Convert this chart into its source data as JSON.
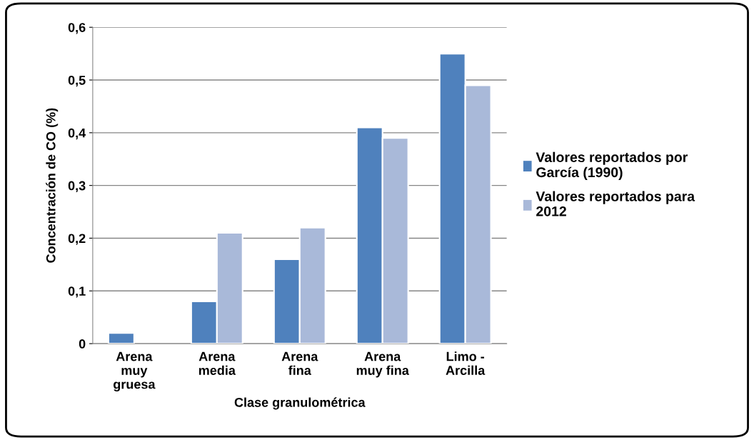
{
  "chart_data": {
    "type": "bar",
    "xlabel": "Clase granulométrica",
    "ylabel": "Concentración de CO (%)",
    "categories": [
      "Arena\nmuy\ngruesa",
      "Arena\nmedia",
      "Arena\nfina",
      "Arena\nmuy fina",
      "Limo -\nArcilla"
    ],
    "series": [
      {
        "name": "Valores reportados por\nGarcía (1990)",
        "color": "#4f81bd",
        "values": [
          0.02,
          0.08,
          0.16,
          0.41,
          0.55
        ]
      },
      {
        "name": "Valores reportados para\n2012",
        "color": "#a9b9d9",
        "values": [
          null,
          0.21,
          0.22,
          0.39,
          0.49
        ]
      }
    ],
    "ylim": [
      0,
      0.6
    ],
    "yticks": [
      {
        "value": 0,
        "label": "0"
      },
      {
        "value": 0.1,
        "label": "0,1"
      },
      {
        "value": 0.2,
        "label": "0,2"
      },
      {
        "value": 0.3,
        "label": "0,3"
      },
      {
        "value": 0.4,
        "label": "0,4"
      },
      {
        "value": 0.5,
        "label": "0,5"
      },
      {
        "value": 0.6,
        "label": "0,6"
      }
    ],
    "grid": "y",
    "legend": "right"
  }
}
